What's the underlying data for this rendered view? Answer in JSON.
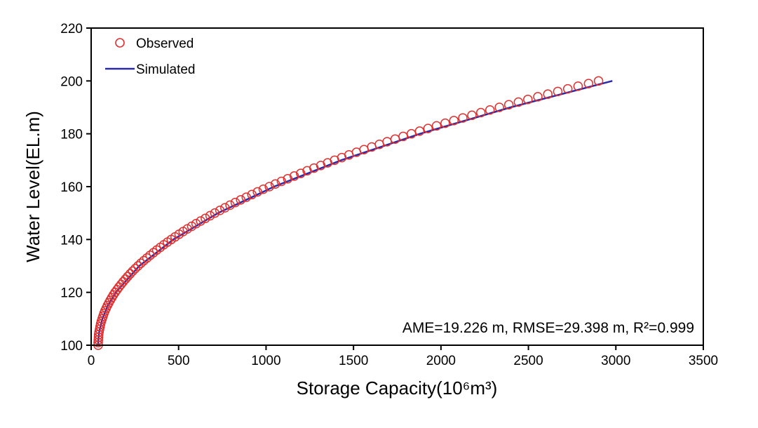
{
  "chart_data": {
    "type": "scatter",
    "title": "",
    "xlabel": "Storage Capacity(10⁶m³)",
    "ylabel": "Water Level(EL.m)",
    "xlim": [
      0,
      3500
    ],
    "ylim": [
      100,
      220
    ],
    "xticks": [
      0,
      500,
      1000,
      1500,
      2000,
      2500,
      3000,
      3500
    ],
    "yticks": [
      100,
      120,
      140,
      160,
      180,
      200,
      220
    ],
    "grid": false,
    "legend_position": "top-left",
    "annotation": "AME=19.226 m, RMSE=29.398 m, R²=0.999",
    "series": [
      {
        "name": "Observed",
        "kind": "markers",
        "color": "#e03030",
        "level": [
          100,
          101,
          102,
          103,
          104,
          105,
          106,
          107,
          108,
          109,
          110,
          111,
          112,
          113,
          114,
          115,
          116,
          117,
          118,
          119,
          120,
          121,
          122,
          123,
          124,
          125,
          126,
          127,
          128,
          129,
          130,
          131,
          132,
          133,
          134,
          135,
          136,
          137,
          138,
          139,
          140,
          141,
          142,
          143,
          144,
          145,
          146,
          147,
          148,
          149,
          150,
          151,
          152,
          153,
          154,
          155,
          156,
          157,
          158,
          159,
          160,
          161,
          162,
          163,
          164,
          165,
          166,
          167,
          168,
          169,
          170,
          171,
          172,
          173,
          174,
          175,
          176,
          177,
          178,
          179,
          180,
          181,
          182,
          183,
          184,
          185,
          186,
          187,
          188,
          189,
          190,
          191,
          192,
          193,
          194,
          195,
          196,
          197,
          198,
          199,
          200
        ],
        "capacity": [
          40,
          40,
          41,
          42,
          43,
          45,
          48,
          51,
          54,
          58,
          63,
          68,
          73,
          79,
          86,
          93,
          101,
          109,
          118,
          127,
          137,
          148,
          159,
          171,
          183,
          196,
          209,
          223,
          237,
          252,
          268,
          284,
          301,
          319,
          337,
          356,
          375,
          395,
          415,
          436,
          458,
          480,
          503,
          526,
          550,
          575,
          600,
          626,
          653,
          680,
          707,
          736,
          765,
          794,
          824,
          855,
          887,
          919,
          951,
          984,
          1019,
          1053,
          1088,
          1124,
          1161,
          1198,
          1235,
          1274,
          1313,
          1352,
          1392,
          1433,
          1474,
          1517,
          1560,
          1604,
          1648,
          1692,
          1738,
          1784,
          1831,
          1878,
          1926,
          1975,
          2024,
          2074,
          2125,
          2177,
          2228,
          2280,
          2334,
          2388,
          2443,
          2497,
          2554,
          2611,
          2668,
          2725,
          2784,
          2844,
          2901
        ]
      },
      {
        "name": "Simulated",
        "kind": "line",
        "color": "#2a2aa8",
        "level": [
          100,
          102,
          105,
          110,
          115,
          120,
          130,
          140,
          150,
          160,
          170,
          180,
          190,
          200
        ],
        "capacity": [
          40,
          41,
          46,
          64,
          95,
          141,
          275,
          470,
          726,
          1046,
          1430,
          1880,
          2398,
          2980
        ]
      }
    ]
  }
}
